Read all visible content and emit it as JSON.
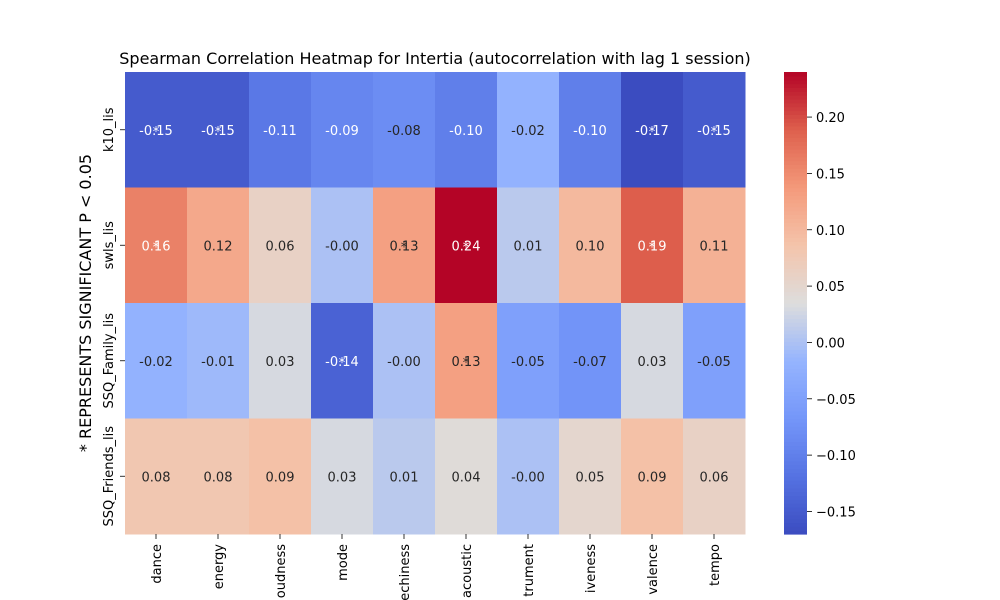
{
  "chart_data": {
    "type": "heatmap",
    "title": "Spearman Correlation Heatmap for Intertia (autocorrelation with lag 1 session)",
    "ylabel": "* REPRESENTS SIGNIFICANT P < 0.05",
    "xlabel": "",
    "x_tick_labels": [
      "dance",
      "energy",
      "oudness",
      "mode",
      "echiness",
      "acoustic",
      "trument",
      "iveness",
      "valence",
      "tempo"
    ],
    "y_tick_labels": [
      "k10_lis",
      "swls_lis",
      "SSQ_Family_lis",
      "SSQ_Friends_lis"
    ],
    "values": [
      [
        -0.15,
        -0.15,
        -0.11,
        -0.09,
        -0.08,
        -0.1,
        -0.02,
        -0.1,
        -0.17,
        -0.15
      ],
      [
        0.16,
        0.12,
        0.06,
        -0.0,
        0.13,
        0.24,
        0.01,
        0.1,
        0.19,
        0.11
      ],
      [
        -0.02,
        -0.01,
        0.03,
        -0.14,
        -0.0,
        0.13,
        -0.05,
        -0.07,
        0.03,
        -0.05
      ],
      [
        0.08,
        0.08,
        0.09,
        0.03,
        0.01,
        0.04,
        -0.0,
        0.05,
        0.09,
        0.06
      ]
    ],
    "cell_labels": [
      [
        "-0.15",
        "-0.15",
        "-0.11",
        "-0.09",
        "-0.08",
        "-0.10",
        "-0.02",
        "-0.10",
        "-0.17",
        "-0.15"
      ],
      [
        "0.16",
        "0.12",
        "0.06",
        "-0.00",
        "0.13",
        "0.24",
        "0.01",
        "0.10",
        "0.19",
        "0.11"
      ],
      [
        "-0.02",
        "-0.01",
        "0.03",
        "-0.14",
        "-0.00",
        "0.13",
        "-0.05",
        "-0.07",
        "0.03",
        "-0.05"
      ],
      [
        "0.08",
        "0.08",
        "0.09",
        "0.03",
        "0.01",
        "0.04",
        "-0.00",
        "0.05",
        "0.09",
        "0.06"
      ]
    ],
    "significant": [
      [
        true,
        true,
        false,
        false,
        false,
        false,
        false,
        false,
        true,
        true
      ],
      [
        true,
        false,
        false,
        false,
        true,
        true,
        false,
        false,
        true,
        false
      ],
      [
        false,
        false,
        false,
        true,
        false,
        true,
        false,
        false,
        false,
        false
      ],
      [
        false,
        false,
        false,
        false,
        false,
        false,
        false,
        false,
        false,
        false
      ]
    ],
    "colormap": "coolwarm",
    "vmin": -0.17,
    "vmax": 0.24,
    "colorbar_ticks": [
      -0.15,
      -0.1,
      -0.05,
      0.0,
      0.05,
      0.1,
      0.15,
      0.2
    ],
    "colorbar_tick_labels": [
      "−0.15",
      "−0.10",
      "−0.05",
      "0.00",
      "0.05",
      "0.10",
      "0.15",
      "0.20"
    ],
    "colorbar_placement": "right",
    "grid": false
  }
}
